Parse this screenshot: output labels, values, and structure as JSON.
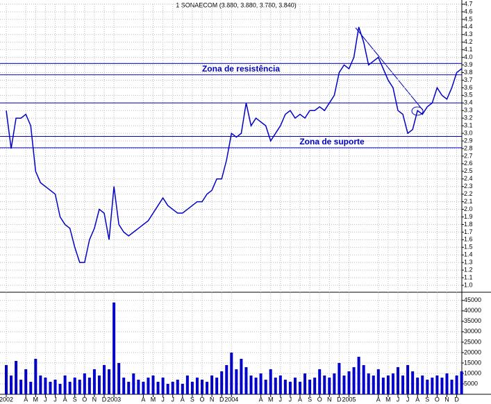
{
  "chart_data": {
    "type": "stock",
    "title": "1 SONAECOM (3.880, 3.880, 3.780, 3.840)",
    "categories": [
      "2002",
      null,
      null,
      null,
      "A",
      null,
      "M",
      null,
      "J",
      null,
      "J",
      null,
      "A",
      null,
      "S",
      null,
      "O",
      null,
      "N",
      null,
      "D",
      null,
      "2003",
      null,
      null,
      null,
      null,
      null,
      "A",
      null,
      "M",
      null,
      "J",
      null,
      "J",
      null,
      "A",
      null,
      "S",
      null,
      "O",
      null,
      "N",
      null,
      "D",
      null,
      "2004",
      null,
      null,
      null,
      null,
      null,
      "A",
      null,
      "M",
      null,
      "J",
      null,
      "J",
      null,
      "A",
      null,
      "S",
      null,
      "O",
      null,
      "N",
      null,
      "D",
      null,
      "2005",
      null,
      null,
      null,
      null,
      null,
      "A",
      null,
      "M",
      null,
      "J",
      null,
      "J",
      null,
      "A",
      null,
      "S",
      null,
      "O",
      null,
      "N",
      null,
      "D",
      null
    ],
    "price": [
      3.3,
      2.8,
      3.2,
      3.2,
      3.25,
      3.1,
      2.5,
      2.35,
      2.3,
      2.25,
      2.2,
      1.9,
      1.8,
      1.75,
      1.5,
      1.3,
      1.3,
      1.6,
      1.75,
      2.0,
      1.95,
      1.6,
      2.3,
      1.8,
      1.7,
      1.65,
      1.7,
      1.75,
      1.8,
      1.85,
      1.95,
      2.05,
      2.15,
      2.05,
      2.0,
      1.95,
      1.95,
      2.0,
      2.05,
      2.1,
      2.1,
      2.2,
      2.25,
      2.4,
      2.4,
      2.65,
      3.0,
      2.95,
      3.0,
      3.4,
      3.1,
      3.2,
      3.15,
      3.1,
      2.9,
      3.0,
      3.1,
      3.25,
      3.3,
      3.2,
      3.25,
      3.2,
      3.3,
      3.3,
      3.35,
      3.3,
      3.4,
      3.5,
      3.8,
      3.9,
      3.85,
      4.0,
      4.4,
      4.2,
      3.9,
      3.95,
      4.0,
      3.85,
      3.7,
      3.6,
      3.3,
      3.25,
      3.0,
      3.05,
      3.3,
      3.25,
      3.35,
      3.4,
      3.6,
      3.5,
      3.45,
      3.6,
      3.8,
      3.85
    ],
    "volume": [
      14000,
      9000,
      16000,
      7000,
      12000,
      6000,
      17000,
      9000,
      8000,
      6000,
      7000,
      5000,
      9000,
      6000,
      8000,
      7000,
      10000,
      8000,
      12000,
      9000,
      14000,
      12000,
      44000,
      15000,
      8000,
      6000,
      10000,
      7000,
      6000,
      8000,
      9000,
      6000,
      8000,
      5000,
      6000,
      7000,
      5000,
      9000,
      6000,
      8000,
      7000,
      6000,
      9000,
      8000,
      11000,
      14000,
      20000,
      12000,
      17000,
      13000,
      9000,
      8000,
      10000,
      7000,
      12000,
      8000,
      9000,
      7000,
      6000,
      8000,
      6000,
      10000,
      7000,
      8000,
      12000,
      9000,
      8000,
      10000,
      15000,
      9000,
      11000,
      13000,
      18000,
      14000,
      10000,
      9000,
      12000,
      8000,
      9000,
      10000,
      13000,
      9000,
      14000,
      11000,
      8000,
      9000,
      7000,
      8000,
      9000,
      8000,
      10000,
      7000,
      9000,
      11000
    ],
    "color": "#0000c8",
    "ylim": [
      1.0,
      4.7
    ],
    "yticks": [
      {
        "value": 1,
        "label": "1.0"
      },
      1.1,
      1.2,
      1.3,
      1.4,
      1.5,
      1.6,
      1.7,
      1.8,
      1.9,
      {
        "value": 2,
        "label": "2.0"
      },
      2.1,
      2.2,
      2.3,
      2.4,
      2.5,
      2.6,
      2.7,
      2.8,
      2.9,
      {
        "value": 3,
        "label": "3.0"
      },
      3.1,
      3.2,
      3.3,
      3.4,
      3.5,
      3.6,
      3.7,
      3.8,
      3.9,
      {
        "value": 4,
        "label": "4.0"
      },
      4.1,
      4.2,
      4.3,
      4.4,
      4.5,
      4.6,
      4.7
    ],
    "y2lim": [
      0,
      47600
    ],
    "y2ticks": [
      5000,
      10000,
      15000,
      20000,
      25000,
      30000,
      35000,
      40000,
      45000
    ],
    "levels": [
      3.92,
      3.77,
      3.4,
      2.96,
      2.81
    ],
    "annotations": [
      "Zona de resistência",
      "Zona de suporte"
    ],
    "grid": true
  }
}
